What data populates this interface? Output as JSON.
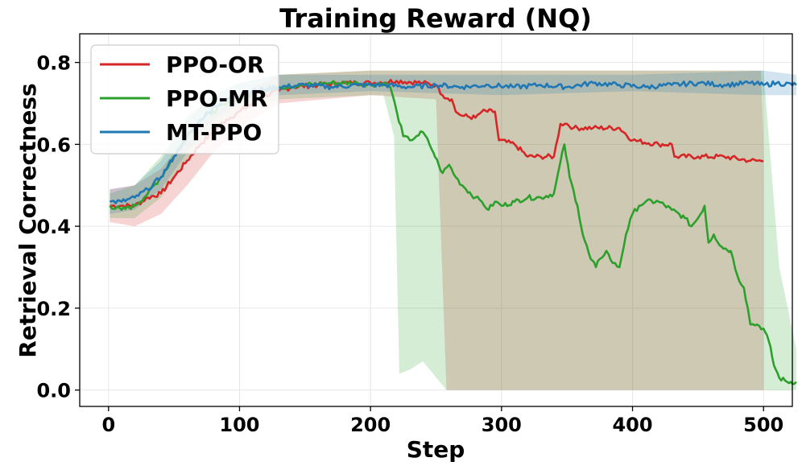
{
  "chart_data": {
    "type": "line",
    "title": "Training Reward (NQ)",
    "xlabel": "Step",
    "ylabel": "Retrieval Correctness",
    "xlim": [
      -22,
      522
    ],
    "ylim": [
      -0.04,
      0.87
    ],
    "xticks": [
      0,
      100,
      200,
      300,
      400,
      500
    ],
    "xtick_labels": [
      "0",
      "100",
      "200",
      "300",
      "400",
      "500"
    ],
    "yticks": [
      0.0,
      0.2,
      0.4,
      0.6,
      0.8
    ],
    "ytick_labels": [
      "0.0",
      "0.2",
      "0.4",
      "0.6",
      "0.8"
    ],
    "grid": true,
    "legend_position": "upper-left",
    "series": [
      {
        "name": "PPO-OR",
        "color": "#d62728",
        "points": [
          [
            1,
            0.45
          ],
          [
            10,
            0.45
          ],
          [
            20,
            0.45
          ],
          [
            30,
            0.47
          ],
          [
            40,
            0.48
          ],
          [
            50,
            0.52
          ],
          [
            60,
            0.56
          ],
          [
            70,
            0.6
          ],
          [
            80,
            0.63
          ],
          [
            90,
            0.66
          ],
          [
            100,
            0.68
          ],
          [
            110,
            0.7
          ],
          [
            120,
            0.72
          ],
          [
            130,
            0.73
          ],
          [
            140,
            0.74
          ],
          [
            160,
            0.745
          ],
          [
            180,
            0.75
          ],
          [
            200,
            0.75
          ],
          [
            220,
            0.755
          ],
          [
            240,
            0.75
          ],
          [
            250,
            0.745
          ],
          [
            255,
            0.72
          ],
          [
            262,
            0.71
          ],
          [
            265,
            0.68
          ],
          [
            270,
            0.67
          ],
          [
            280,
            0.665
          ],
          [
            285,
            0.68
          ],
          [
            295,
            0.68
          ],
          [
            298,
            0.61
          ],
          [
            310,
            0.6
          ],
          [
            320,
            0.57
          ],
          [
            330,
            0.57
          ],
          [
            340,
            0.57
          ],
          [
            345,
            0.65
          ],
          [
            350,
            0.65
          ],
          [
            355,
            0.64
          ],
          [
            370,
            0.64
          ],
          [
            390,
            0.64
          ],
          [
            400,
            0.61
          ],
          [
            420,
            0.6
          ],
          [
            430,
            0.6
          ],
          [
            432,
            0.57
          ],
          [
            450,
            0.57
          ],
          [
            470,
            0.57
          ],
          [
            490,
            0.56
          ],
          [
            500,
            0.56
          ]
        ],
        "band": [
          [
            1,
            0.41,
            0.49
          ],
          [
            20,
            0.4,
            0.5
          ],
          [
            40,
            0.43,
            0.54
          ],
          [
            60,
            0.5,
            0.62
          ],
          [
            80,
            0.58,
            0.68
          ],
          [
            100,
            0.64,
            0.72
          ],
          [
            130,
            0.7,
            0.77
          ],
          [
            200,
            0.72,
            0.78
          ],
          [
            250,
            0.71,
            0.78
          ],
          [
            258,
            0.0,
            0.78
          ],
          [
            295,
            0.0,
            0.78
          ],
          [
            300,
            0.0,
            0.78
          ],
          [
            345,
            0.0,
            0.78
          ],
          [
            348,
            0.0,
            0.78
          ],
          [
            470,
            0.0,
            0.78
          ],
          [
            480,
            0.0,
            0.78
          ],
          [
            498,
            0.0,
            0.78
          ],
          [
            500,
            0.0,
            0.6
          ]
        ]
      },
      {
        "name": "PPO-MR",
        "color": "#2ca02c",
        "points": [
          [
            1,
            0.45
          ],
          [
            10,
            0.44
          ],
          [
            20,
            0.45
          ],
          [
            30,
            0.48
          ],
          [
            40,
            0.52
          ],
          [
            50,
            0.57
          ],
          [
            60,
            0.62
          ],
          [
            70,
            0.66
          ],
          [
            80,
            0.68
          ],
          [
            90,
            0.7
          ],
          [
            100,
            0.71
          ],
          [
            115,
            0.73
          ],
          [
            130,
            0.74
          ],
          [
            150,
            0.745
          ],
          [
            170,
            0.75
          ],
          [
            190,
            0.75
          ],
          [
            200,
            0.745
          ],
          [
            210,
            0.75
          ],
          [
            215,
            0.74
          ],
          [
            220,
            0.68
          ],
          [
            225,
            0.62
          ],
          [
            230,
            0.61
          ],
          [
            235,
            0.62
          ],
          [
            240,
            0.63
          ],
          [
            245,
            0.6
          ],
          [
            248,
            0.58
          ],
          [
            252,
            0.55
          ],
          [
            255,
            0.53
          ],
          [
            260,
            0.55
          ],
          [
            265,
            0.52
          ],
          [
            270,
            0.5
          ],
          [
            280,
            0.47
          ],
          [
            285,
            0.46
          ],
          [
            290,
            0.44
          ],
          [
            295,
            0.46
          ],
          [
            300,
            0.45
          ],
          [
            310,
            0.46
          ],
          [
            320,
            0.47
          ],
          [
            330,
            0.47
          ],
          [
            340,
            0.48
          ],
          [
            348,
            0.6
          ],
          [
            352,
            0.52
          ],
          [
            358,
            0.45
          ],
          [
            362,
            0.38
          ],
          [
            368,
            0.32
          ],
          [
            372,
            0.3
          ],
          [
            375,
            0.32
          ],
          [
            380,
            0.34
          ],
          [
            385,
            0.31
          ],
          [
            390,
            0.3
          ],
          [
            395,
            0.38
          ],
          [
            400,
            0.43
          ],
          [
            405,
            0.45
          ],
          [
            410,
            0.46
          ],
          [
            420,
            0.46
          ],
          [
            430,
            0.44
          ],
          [
            440,
            0.42
          ],
          [
            445,
            0.4
          ],
          [
            450,
            0.42
          ],
          [
            455,
            0.45
          ],
          [
            458,
            0.36
          ],
          [
            462,
            0.38
          ],
          [
            468,
            0.35
          ],
          [
            475,
            0.34
          ],
          [
            480,
            0.28
          ],
          [
            485,
            0.25
          ],
          [
            488,
            0.2
          ],
          [
            490,
            0.16
          ],
          [
            495,
            0.16
          ],
          [
            500,
            0.15
          ],
          [
            504,
            0.12
          ],
          [
            508,
            0.06
          ],
          [
            512,
            0.03
          ],
          [
            518,
            0.02
          ],
          [
            525,
            0.02
          ]
        ],
        "band": [
          [
            1,
            0.42,
            0.48
          ],
          [
            20,
            0.42,
            0.5
          ],
          [
            40,
            0.47,
            0.57
          ],
          [
            60,
            0.56,
            0.67
          ],
          [
            80,
            0.64,
            0.72
          ],
          [
            100,
            0.68,
            0.75
          ],
          [
            130,
            0.71,
            0.77
          ],
          [
            200,
            0.72,
            0.78
          ],
          [
            210,
            0.72,
            0.78
          ],
          [
            218,
            0.62,
            0.78
          ],
          [
            222,
            0.04,
            0.78
          ],
          [
            230,
            0.05,
            0.78
          ],
          [
            240,
            0.07,
            0.78
          ],
          [
            258,
            0.0,
            0.78
          ],
          [
            298,
            0.0,
            0.78
          ],
          [
            348,
            0.0,
            0.78
          ],
          [
            360,
            0.0,
            0.78
          ],
          [
            470,
            0.0,
            0.78
          ],
          [
            500,
            0.0,
            0.78
          ],
          [
            512,
            0.0,
            0.3
          ],
          [
            525,
            0.0,
            0.1
          ]
        ]
      },
      {
        "name": "MT-PPO",
        "color": "#1f77b4",
        "points": [
          [
            1,
            0.46
          ],
          [
            10,
            0.46
          ],
          [
            20,
            0.47
          ],
          [
            30,
            0.49
          ],
          [
            40,
            0.52
          ],
          [
            50,
            0.57
          ],
          [
            60,
            0.62
          ],
          [
            70,
            0.66
          ],
          [
            80,
            0.69
          ],
          [
            90,
            0.71
          ],
          [
            100,
            0.72
          ],
          [
            110,
            0.73
          ],
          [
            120,
            0.735
          ],
          [
            130,
            0.74
          ],
          [
            150,
            0.745
          ],
          [
            170,
            0.74
          ],
          [
            190,
            0.745
          ],
          [
            210,
            0.745
          ],
          [
            230,
            0.74
          ],
          [
            250,
            0.745
          ],
          [
            270,
            0.74
          ],
          [
            290,
            0.745
          ],
          [
            310,
            0.74
          ],
          [
            330,
            0.745
          ],
          [
            350,
            0.74
          ],
          [
            370,
            0.75
          ],
          [
            390,
            0.745
          ],
          [
            410,
            0.74
          ],
          [
            430,
            0.745
          ],
          [
            450,
            0.75
          ],
          [
            470,
            0.745
          ],
          [
            490,
            0.75
          ],
          [
            500,
            0.745
          ],
          [
            510,
            0.75
          ],
          [
            525,
            0.745
          ]
        ],
        "band": [
          [
            1,
            0.43,
            0.49
          ],
          [
            20,
            0.44,
            0.5
          ],
          [
            40,
            0.49,
            0.56
          ],
          [
            60,
            0.58,
            0.66
          ],
          [
            80,
            0.66,
            0.72
          ],
          [
            100,
            0.7,
            0.75
          ],
          [
            130,
            0.72,
            0.77
          ],
          [
            200,
            0.73,
            0.77
          ],
          [
            300,
            0.72,
            0.77
          ],
          [
            400,
            0.73,
            0.77
          ],
          [
            500,
            0.72,
            0.78
          ],
          [
            525,
            0.72,
            0.77
          ]
        ]
      }
    ]
  }
}
